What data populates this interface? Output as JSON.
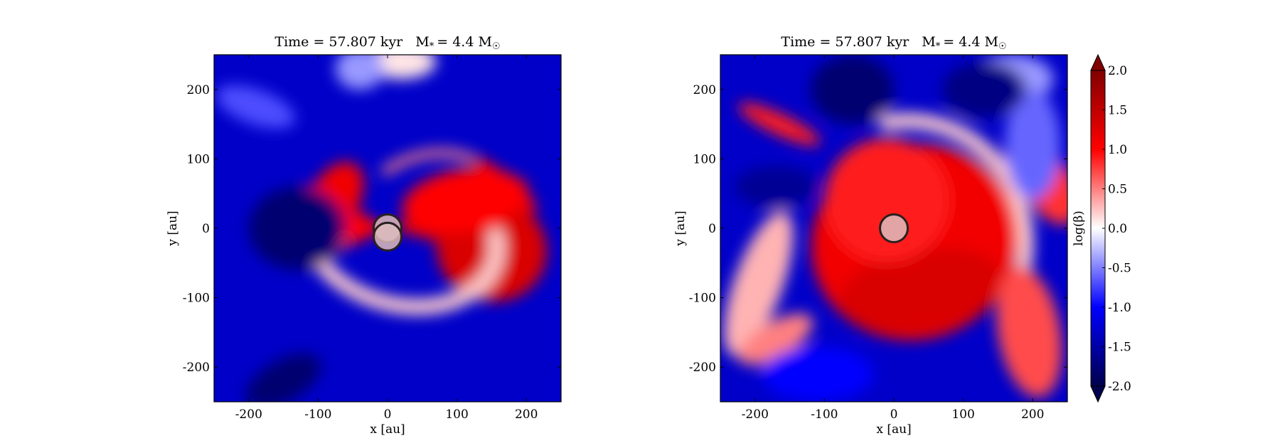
{
  "chart_data": [
    {
      "type": "heatmap",
      "title": "Time = 57.807 kyr    M * = 4.4 M ☉",
      "title_parts": {
        "time": "Time = 57.807 kyr",
        "mass_prefix": "M",
        "mass_sub": "*",
        "mass_value": "= 4.4 M",
        "mass_sun": "☉"
      },
      "xlabel": "x [au]",
      "ylabel": "y [au]",
      "xlim": [
        -250,
        250
      ],
      "ylim": [
        -250,
        250
      ],
      "xticks": [
        -200,
        -100,
        0,
        100,
        200
      ],
      "yticks": [
        -200,
        -100,
        0,
        100,
        200
      ],
      "xtick_labels": [
        "-200",
        "-100",
        "0",
        "100",
        "200"
      ],
      "ytick_labels": [
        "-200",
        "-100",
        "0",
        "100",
        "200"
      ],
      "background_value": -1.3,
      "features": [
        {
          "shape": "wedge",
          "cx": 0,
          "cy": 0,
          "angle_from": -15,
          "angle_to": 20,
          "r_max": 210,
          "value": 1.2
        },
        {
          "shape": "wedge",
          "cx": 0,
          "cy": 0,
          "angle_from": 150,
          "angle_to": 205,
          "r_max": 130,
          "value": 1.0
        },
        {
          "shape": "blob",
          "cx": 150,
          "cy": -30,
          "rx": 80,
          "ry": 75,
          "angle": -20,
          "value": 1.3
        },
        {
          "shape": "blob",
          "cx": 110,
          "cy": 40,
          "rx": 90,
          "ry": 45,
          "angle": 10,
          "value": 1.0
        },
        {
          "shape": "blob",
          "cx": -75,
          "cy": 45,
          "rx": 35,
          "ry": 55,
          "angle": -30,
          "value": 1.1
        },
        {
          "shape": "blob",
          "cx": -95,
          "cy": -10,
          "rx": 35,
          "ry": 35,
          "angle": 0,
          "value": 0.6
        },
        {
          "shape": "arc",
          "cx": 20,
          "cy": -10,
          "rx": 140,
          "ry": 100,
          "angle": -15,
          "from": -150,
          "to": 20,
          "value": 0.2,
          "width": 22
        },
        {
          "shape": "arc",
          "cx": 60,
          "cy": 20,
          "rx": 110,
          "ry": 85,
          "angle": 20,
          "from": 40,
          "to": 110,
          "value": 0.5,
          "width": 12
        },
        {
          "shape": "blob",
          "cx": 170,
          "cy": 65,
          "rx": 60,
          "ry": 10,
          "angle": -40,
          "value": 1.0
        },
        {
          "shape": "blob",
          "cx": 20,
          "cy": 240,
          "rx": 50,
          "ry": 25,
          "angle": 0,
          "value": 0.1
        },
        {
          "shape": "blob",
          "cx": -40,
          "cy": 230,
          "rx": 35,
          "ry": 30,
          "angle": 0,
          "value": -0.4
        },
        {
          "shape": "blob",
          "cx": -190,
          "cy": 175,
          "rx": 60,
          "ry": 25,
          "angle": -20,
          "value": -0.7
        },
        {
          "shape": "blob",
          "cx": -150,
          "cy": -220,
          "rx": 60,
          "ry": 30,
          "angle": 30,
          "value": -1.8
        },
        {
          "shape": "blob",
          "cx": -130,
          "cy": 0,
          "rx": 70,
          "ry": 60,
          "angle": 0,
          "value": -1.8
        }
      ],
      "markers": [
        {
          "x": 0,
          "y": 0,
          "r": 20
        },
        {
          "x": 0,
          "y": -12,
          "r": 20
        }
      ]
    },
    {
      "type": "heatmap",
      "title": "Time = 57.807 kyr    M * = 4.4 M ☉",
      "title_parts": {
        "time": "Time = 57.807 kyr",
        "mass_prefix": "M",
        "mass_sub": "*",
        "mass_value": "= 4.4 M",
        "mass_sun": "☉"
      },
      "xlabel": "x [au]",
      "ylabel": "y [au]",
      "xlim": [
        -250,
        250
      ],
      "ylim": [
        -250,
        250
      ],
      "xticks": [
        -200,
        -100,
        0,
        100,
        200
      ],
      "yticks": [
        -200,
        -100,
        0,
        100,
        200
      ],
      "xtick_labels": [
        "-200",
        "-100",
        "0",
        "100",
        "200"
      ],
      "ytick_labels": [
        "-200",
        "-100",
        "0",
        "100",
        "200"
      ],
      "background_value": -1.3,
      "features": [
        {
          "shape": "blob",
          "cx": 30,
          "cy": -20,
          "rx": 150,
          "ry": 140,
          "angle": 20,
          "value": 1.1
        },
        {
          "shape": "blob",
          "cx": 40,
          "cy": -90,
          "rx": 120,
          "ry": 60,
          "angle": 10,
          "value": 1.3
        },
        {
          "shape": "blob",
          "cx": -10,
          "cy": 40,
          "rx": 90,
          "ry": 90,
          "angle": 0,
          "value": 0.9
        },
        {
          "shape": "arc",
          "cx": 20,
          "cy": -20,
          "rx": 170,
          "ry": 175,
          "angle": 10,
          "from": -40,
          "to": 90,
          "value": 0.2,
          "width": 22
        },
        {
          "shape": "blob",
          "cx": 195,
          "cy": -150,
          "rx": 45,
          "ry": 95,
          "angle": 10,
          "value": 0.7
        },
        {
          "shape": "blob",
          "cx": 225,
          "cy": 60,
          "rx": 35,
          "ry": 60,
          "angle": 30,
          "value": 0.8
        },
        {
          "shape": "blob",
          "cx": -165,
          "cy": 150,
          "rx": 65,
          "ry": 15,
          "angle": -25,
          "value": 0.9
        },
        {
          "shape": "blob",
          "cx": -195,
          "cy": -80,
          "rx": 35,
          "ry": 110,
          "angle": -20,
          "value": 0.3
        },
        {
          "shape": "blob",
          "cx": -170,
          "cy": -160,
          "rx": 60,
          "ry": 25,
          "angle": 30,
          "value": 0.5
        },
        {
          "shape": "blob",
          "cx": 170,
          "cy": 215,
          "rx": 60,
          "ry": 35,
          "angle": 0,
          "value": -0.4
        },
        {
          "shape": "blob",
          "cx": 200,
          "cy": 120,
          "rx": 40,
          "ry": 80,
          "angle": 0,
          "value": -0.6
        },
        {
          "shape": "blob",
          "cx": -110,
          "cy": -210,
          "rx": 80,
          "ry": 40,
          "angle": 0,
          "value": -1.0
        },
        {
          "shape": "blob",
          "cx": 130,
          "cy": 200,
          "rx": 60,
          "ry": 40,
          "angle": 0,
          "value": -1.7
        },
        {
          "shape": "blob",
          "cx": -60,
          "cy": 200,
          "rx": 60,
          "ry": 50,
          "angle": 0,
          "value": -1.8
        },
        {
          "shape": "blob",
          "cx": -170,
          "cy": 60,
          "rx": 60,
          "ry": 30,
          "angle": 0,
          "value": -1.6
        }
      ],
      "markers": [
        {
          "x": 0,
          "y": 0,
          "r": 20
        }
      ]
    }
  ],
  "colorbar": {
    "label": "log(β)",
    "vmin": -2.0,
    "vmax": 2.0,
    "extend": "both",
    "ticks": [
      2.0,
      1.5,
      1.0,
      0.5,
      0.0,
      -0.5,
      -1.0,
      -1.5,
      -2.0
    ],
    "tick_labels": [
      "2.0",
      "1.5",
      "1.0",
      "0.5",
      "0.0",
      "-0.5",
      "-1.0",
      "-1.5",
      "-2.0"
    ],
    "colormap": "seismic",
    "colors": {
      "low": "#00004c",
      "mid_low": "#0000ff",
      "mid": "#ffffff",
      "mid_high": "#ff0000",
      "high": "#800000"
    }
  },
  "marker_style": {
    "fill": "#ddbcbc",
    "stroke": "#2a2020"
  }
}
